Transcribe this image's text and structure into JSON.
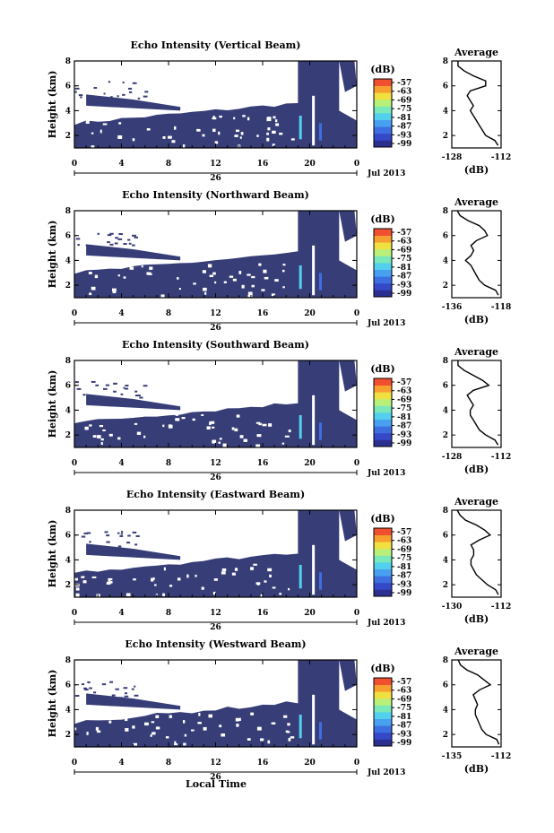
{
  "figure": {
    "x_axis_label": "Local Time",
    "date_label": "Jul 2013",
    "day_label": "26"
  },
  "colors": {
    "background_fill": "#373d77",
    "colormap": [
      "#2b2f8f",
      "#3448c8",
      "#3d6fe0",
      "#48a0f0",
      "#52d0ee",
      "#7ae8b8",
      "#b8f07a",
      "#f0e040",
      "#f7a030",
      "#f05030"
    ]
  },
  "chart_data": [
    {
      "type": "heatmap",
      "title": "Echo Intensity (Vertical Beam)",
      "ylabel": "Height (km)",
      "xlim": [
        0,
        24
      ],
      "ylim": [
        1,
        8
      ],
      "x_ticks": [
        "0",
        "4",
        "8",
        "12",
        "16",
        "20",
        "0"
      ],
      "y_ticks": [
        "2",
        "4",
        "6",
        "8"
      ],
      "colorbar": {
        "unit": "(dB)",
        "ticks": [
          "-57",
          "-63",
          "-69",
          "-75",
          "-81",
          "-87",
          "-93",
          "-99"
        ]
      },
      "average": {
        "title": "Average",
        "xlabel": "(dB)",
        "x_ticks": [
          "-128",
          "-112"
        ],
        "xlim": [
          -128,
          -112
        ],
        "y_ticks": [
          "2",
          "4",
          "6",
          "8"
        ],
        "profile": [
          [
            -113,
            1.2
          ],
          [
            -114,
            1.6
          ],
          [
            -117,
            2.0
          ],
          [
            -118,
            2.4
          ],
          [
            -119,
            2.8
          ],
          [
            -120,
            3.2
          ],
          [
            -121,
            3.6
          ],
          [
            -122,
            4.0
          ],
          [
            -121,
            4.4
          ],
          [
            -122,
            4.8
          ],
          [
            -123,
            5.2
          ],
          [
            -122,
            5.6
          ],
          [
            -117,
            6.0
          ],
          [
            -117,
            6.4
          ],
          [
            -121,
            6.8
          ],
          [
            -124,
            7.2
          ],
          [
            -126,
            7.6
          ],
          [
            -126,
            8.0
          ]
        ]
      }
    },
    {
      "type": "heatmap",
      "title": "Echo Intensity (Northward Beam)",
      "ylabel": "Height (km)",
      "xlim": [
        0,
        24
      ],
      "ylim": [
        1,
        8
      ],
      "x_ticks": [
        "0",
        "4",
        "8",
        "12",
        "16",
        "20",
        "0"
      ],
      "y_ticks": [
        "2",
        "4",
        "6",
        "8"
      ],
      "colorbar": {
        "unit": "(dB)",
        "ticks": [
          "-57",
          "-63",
          "-69",
          "-75",
          "-81",
          "-87",
          "-93",
          "-99"
        ]
      },
      "average": {
        "title": "Average",
        "xlabel": "(dB)",
        "x_ticks": [
          "-136",
          "-118"
        ],
        "xlim": [
          -136,
          -118
        ],
        "y_ticks": [
          "2",
          "4",
          "6",
          "8"
        ],
        "profile": [
          [
            -119,
            1.2
          ],
          [
            -120,
            1.6
          ],
          [
            -124,
            2.0
          ],
          [
            -126,
            2.4
          ],
          [
            -127,
            2.8
          ],
          [
            -128,
            3.2
          ],
          [
            -129,
            3.6
          ],
          [
            -131,
            4.0
          ],
          [
            -129,
            4.4
          ],
          [
            -128,
            4.8
          ],
          [
            -129,
            5.2
          ],
          [
            -127,
            5.6
          ],
          [
            -123,
            6.0
          ],
          [
            -124,
            6.4
          ],
          [
            -126,
            6.8
          ],
          [
            -130,
            7.2
          ],
          [
            -133,
            7.6
          ],
          [
            -134,
            8.0
          ]
        ]
      }
    },
    {
      "type": "heatmap",
      "title": "Echo Intensity (Southward Beam)",
      "ylabel": "Height (km)",
      "xlim": [
        0,
        24
      ],
      "ylim": [
        1,
        8
      ],
      "x_ticks": [
        "0",
        "4",
        "8",
        "12",
        "16",
        "20",
        "0"
      ],
      "y_ticks": [
        "2",
        "4",
        "6",
        "8"
      ],
      "colorbar": {
        "unit": "(dB)",
        "ticks": [
          "-57",
          "-63",
          "-69",
          "-75",
          "-81",
          "-87",
          "-93",
          "-99"
        ]
      },
      "average": {
        "title": "Average",
        "xlabel": "(dB)",
        "x_ticks": [
          "-128",
          "-112"
        ],
        "xlim": [
          -128,
          -112
        ],
        "y_ticks": [
          "2",
          "4",
          "6",
          "8"
        ],
        "profile": [
          [
            -113,
            1.2
          ],
          [
            -114,
            1.6
          ],
          [
            -117,
            2.0
          ],
          [
            -119,
            2.4
          ],
          [
            -120,
            2.8
          ],
          [
            -121,
            3.2
          ],
          [
            -122,
            3.6
          ],
          [
            -122,
            4.0
          ],
          [
            -121,
            4.4
          ],
          [
            -122,
            4.8
          ],
          [
            -123,
            5.2
          ],
          [
            -121,
            5.6
          ],
          [
            -116,
            6.0
          ],
          [
            -118,
            6.4
          ],
          [
            -121,
            6.8
          ],
          [
            -124,
            7.2
          ],
          [
            -126,
            7.6
          ],
          [
            -126,
            8.0
          ]
        ]
      }
    },
    {
      "type": "heatmap",
      "title": "Echo Intensity (Eastward Beam)",
      "ylabel": "Height (km)",
      "xlim": [
        0,
        24
      ],
      "ylim": [
        1,
        8
      ],
      "x_ticks": [
        "0",
        "4",
        "8",
        "12",
        "16",
        "20",
        "0"
      ],
      "y_ticks": [
        "2",
        "4",
        "6",
        "8"
      ],
      "colorbar": {
        "unit": "(dB)",
        "ticks": [
          "-57",
          "-63",
          "-69",
          "-75",
          "-81",
          "-87",
          "-93",
          "-99"
        ]
      },
      "average": {
        "title": "Average",
        "xlabel": "(dB)",
        "x_ticks": [
          "-130",
          "-112"
        ],
        "xlim": [
          -130,
          -112
        ],
        "y_ticks": [
          "2",
          "4",
          "6",
          "8"
        ],
        "profile": [
          [
            -113,
            1.2
          ],
          [
            -114,
            1.6
          ],
          [
            -117,
            2.0
          ],
          [
            -119,
            2.4
          ],
          [
            -121,
            2.8
          ],
          [
            -122,
            3.2
          ],
          [
            -123,
            3.6
          ],
          [
            -123,
            4.0
          ],
          [
            -122,
            4.4
          ],
          [
            -122,
            4.8
          ],
          [
            -123,
            5.2
          ],
          [
            -120,
            5.6
          ],
          [
            -116,
            6.0
          ],
          [
            -118,
            6.4
          ],
          [
            -121,
            6.8
          ],
          [
            -125,
            7.2
          ],
          [
            -127,
            7.6
          ],
          [
            -128,
            8.0
          ]
        ]
      }
    },
    {
      "type": "heatmap",
      "title": "Echo Intensity (Westward Beam)",
      "ylabel": "Height (km)",
      "xlim": [
        0,
        24
      ],
      "ylim": [
        1,
        8
      ],
      "x_ticks": [
        "0",
        "4",
        "8",
        "12",
        "16",
        "20",
        "0"
      ],
      "y_ticks": [
        "2",
        "4",
        "6",
        "8"
      ],
      "colorbar": {
        "unit": "(dB)",
        "ticks": [
          "-57",
          "-63",
          "-69",
          "-75",
          "-81",
          "-87",
          "-93",
          "-99"
        ]
      },
      "average": {
        "title": "Average",
        "xlabel": "(dB)",
        "x_ticks": [
          "-135",
          "-112"
        ],
        "xlim": [
          -135,
          -112
        ],
        "y_ticks": [
          "2",
          "4",
          "6",
          "8"
        ],
        "profile": [
          [
            -113,
            1.2
          ],
          [
            -114,
            1.6
          ],
          [
            -119,
            2.0
          ],
          [
            -121,
            2.4
          ],
          [
            -122,
            2.8
          ],
          [
            -123,
            3.2
          ],
          [
            -124,
            3.6
          ],
          [
            -124,
            4.0
          ],
          [
            -123,
            4.4
          ],
          [
            -124,
            4.8
          ],
          [
            -125,
            5.2
          ],
          [
            -122,
            5.6
          ],
          [
            -117,
            6.0
          ],
          [
            -120,
            6.4
          ],
          [
            -123,
            6.8
          ],
          [
            -128,
            7.2
          ],
          [
            -131,
            7.6
          ],
          [
            -132,
            8.0
          ]
        ]
      }
    }
  ]
}
